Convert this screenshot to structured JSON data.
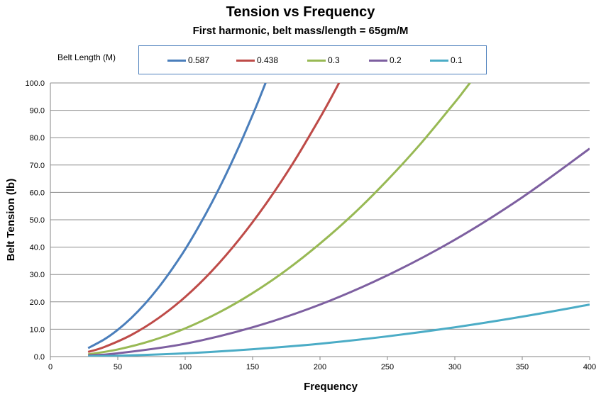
{
  "chart_data": {
    "type": "line",
    "title": "Tension vs Frequency",
    "subtitle": "First harmonic, belt mass/length = 65gm/M",
    "xlabel": "Frequency",
    "ylabel": "Belt Tension (lb)",
    "xlim": [
      0,
      400
    ],
    "ylim": [
      0,
      100
    ],
    "xticks": [
      "0",
      "50",
      "100",
      "150",
      "200",
      "250",
      "300",
      "350",
      "400"
    ],
    "yticks": [
      "0.0",
      "10.0",
      "20.0",
      "30.0",
      "40.0",
      "50.0",
      "60.0",
      "70.0",
      "80.0",
      "90.0",
      "100.0"
    ],
    "grid": true,
    "legend_title": "Belt Length (M)",
    "legend_position": "top",
    "series": [
      {
        "name": "0.587",
        "color": "#4a7ebb",
        "x": [
          28,
          40,
          50,
          60,
          70,
          80,
          90,
          100,
          110,
          120,
          130,
          140,
          150,
          156
        ],
        "y": [
          3.1,
          6.3,
          9.8,
          14.1,
          19.2,
          25.1,
          31.8,
          39.2,
          47.5,
          56.5,
          66.3,
          76.9,
          88.3,
          95.5
        ]
      },
      {
        "name": "0.438",
        "color": "#be4b48",
        "x": [
          28,
          40,
          60,
          80,
          100,
          120,
          140,
          160,
          180,
          200,
          210
        ],
        "y": [
          1.7,
          3.5,
          7.9,
          14.0,
          21.8,
          31.4,
          42.8,
          55.9,
          70.7,
          87.3,
          96.2
        ]
      },
      {
        "name": "0.3",
        "color": "#98b954",
        "x": [
          28,
          50,
          75,
          100,
          125,
          150,
          175,
          200,
          225,
          250,
          275,
          300,
          307
        ],
        "y": [
          0.8,
          2.6,
          5.8,
          10.3,
          16.1,
          23.2,
          31.6,
          41.3,
          52.2,
          64.5,
          78.0,
          92.9,
          97.3
        ]
      },
      {
        "name": "0.2",
        "color": "#7d5fa0",
        "x": [
          28,
          50,
          100,
          150,
          200,
          250,
          300,
          350,
          400
        ],
        "y": [
          0.4,
          1.2,
          4.7,
          10.7,
          19.0,
          29.7,
          42.7,
          58.2,
          76.0
        ]
      },
      {
        "name": "0.1",
        "color": "#4bacc6",
        "x": [
          28,
          50,
          100,
          150,
          200,
          250,
          300,
          350,
          400
        ],
        "y": [
          0.1,
          0.3,
          1.2,
          2.7,
          4.7,
          7.4,
          10.7,
          14.6,
          19.0
        ]
      }
    ]
  }
}
